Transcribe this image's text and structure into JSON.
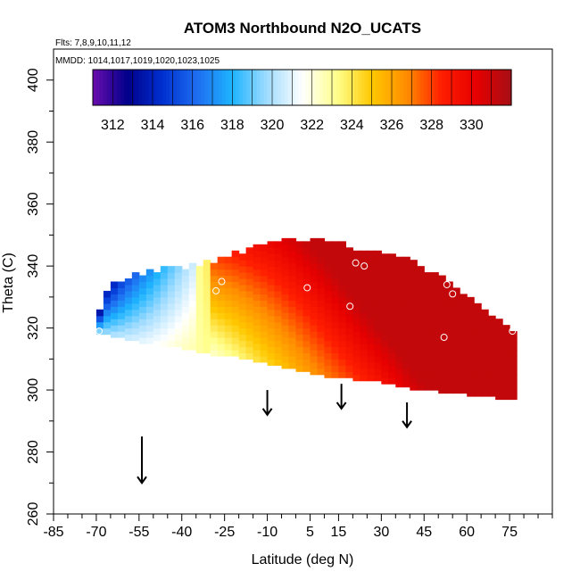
{
  "chart_data": {
    "type": "heatmap",
    "title": "ATOM3 Northbound N2O_UCATS",
    "annotations": [
      "Flts: 7,8,9,10,11,12",
      "MMDD: 1014,1017,1019,1020,1023,1025"
    ],
    "xlabel": "Latitude (deg N)",
    "ylabel": "Theta (C)",
    "xlim": [
      -85,
      90
    ],
    "ylim": [
      260,
      410
    ],
    "x_tick_labels": [
      "-85",
      "-70",
      "-55",
      "-40",
      "-25",
      "-10",
      "5",
      "15",
      "30",
      "45",
      "60",
      "75"
    ],
    "x_ticks": [
      -85,
      -70,
      -55,
      -40,
      -25,
      -10,
      5,
      15,
      30,
      45,
      60,
      75
    ],
    "y_tick_labels": [
      "260",
      "280",
      "300",
      "320",
      "340",
      "360",
      "380",
      "400"
    ],
    "y_ticks": [
      260,
      280,
      300,
      320,
      340,
      360,
      380,
      400
    ],
    "colorbar": {
      "range": [
        311,
        332
      ],
      "tick_labels": [
        "312",
        "314",
        "316",
        "318",
        "320",
        "322",
        "324",
        "326",
        "328",
        "330"
      ],
      "colors": [
        "#6a0dad",
        "#00008b",
        "#0030d0",
        "#1e6ef0",
        "#1eb4ff",
        "#a0dcff",
        "#ffffff",
        "#ffff8c",
        "#ffc800",
        "#ff8c00",
        "#ff1e00",
        "#e60000",
        "#a50f15"
      ]
    },
    "field": {
      "description_rows": [
        {
          "x_range": [
            -70,
            -60
          ],
          "theta_range": [
            318,
            336
          ],
          "typical_value": 315
        },
        {
          "x_range": [
            -50,
            -30
          ],
          "theta_range": [
            310,
            338
          ],
          "typical_value": 321
        },
        {
          "x_range": [
            -20,
            0
          ],
          "theta_range": [
            306,
            346
          ],
          "typical_value": 326
        },
        {
          "x_range": [
            0,
            40
          ],
          "theta_range": [
            302,
            348
          ],
          "typical_value": 330
        },
        {
          "x_range": [
            40,
            75
          ],
          "theta_range": [
            298,
            342
          ],
          "typical_value": 330
        }
      ]
    },
    "sample_points": [
      {
        "x": -69,
        "y": 319
      },
      {
        "x": -28,
        "y": 332
      },
      {
        "x": -26,
        "y": 335
      },
      {
        "x": 4,
        "y": 333
      },
      {
        "x": 19,
        "y": 327
      },
      {
        "x": 21,
        "y": 341
      },
      {
        "x": 24,
        "y": 340
      },
      {
        "x": 52,
        "y": 317
      },
      {
        "x": 53,
        "y": 334
      },
      {
        "x": 55,
        "y": 331
      },
      {
        "x": 76,
        "y": 319
      }
    ],
    "arrows_x": [
      -54,
      -10,
      16,
      39
    ],
    "grid": false,
    "legend": "colorbar top-left inside plot"
  }
}
